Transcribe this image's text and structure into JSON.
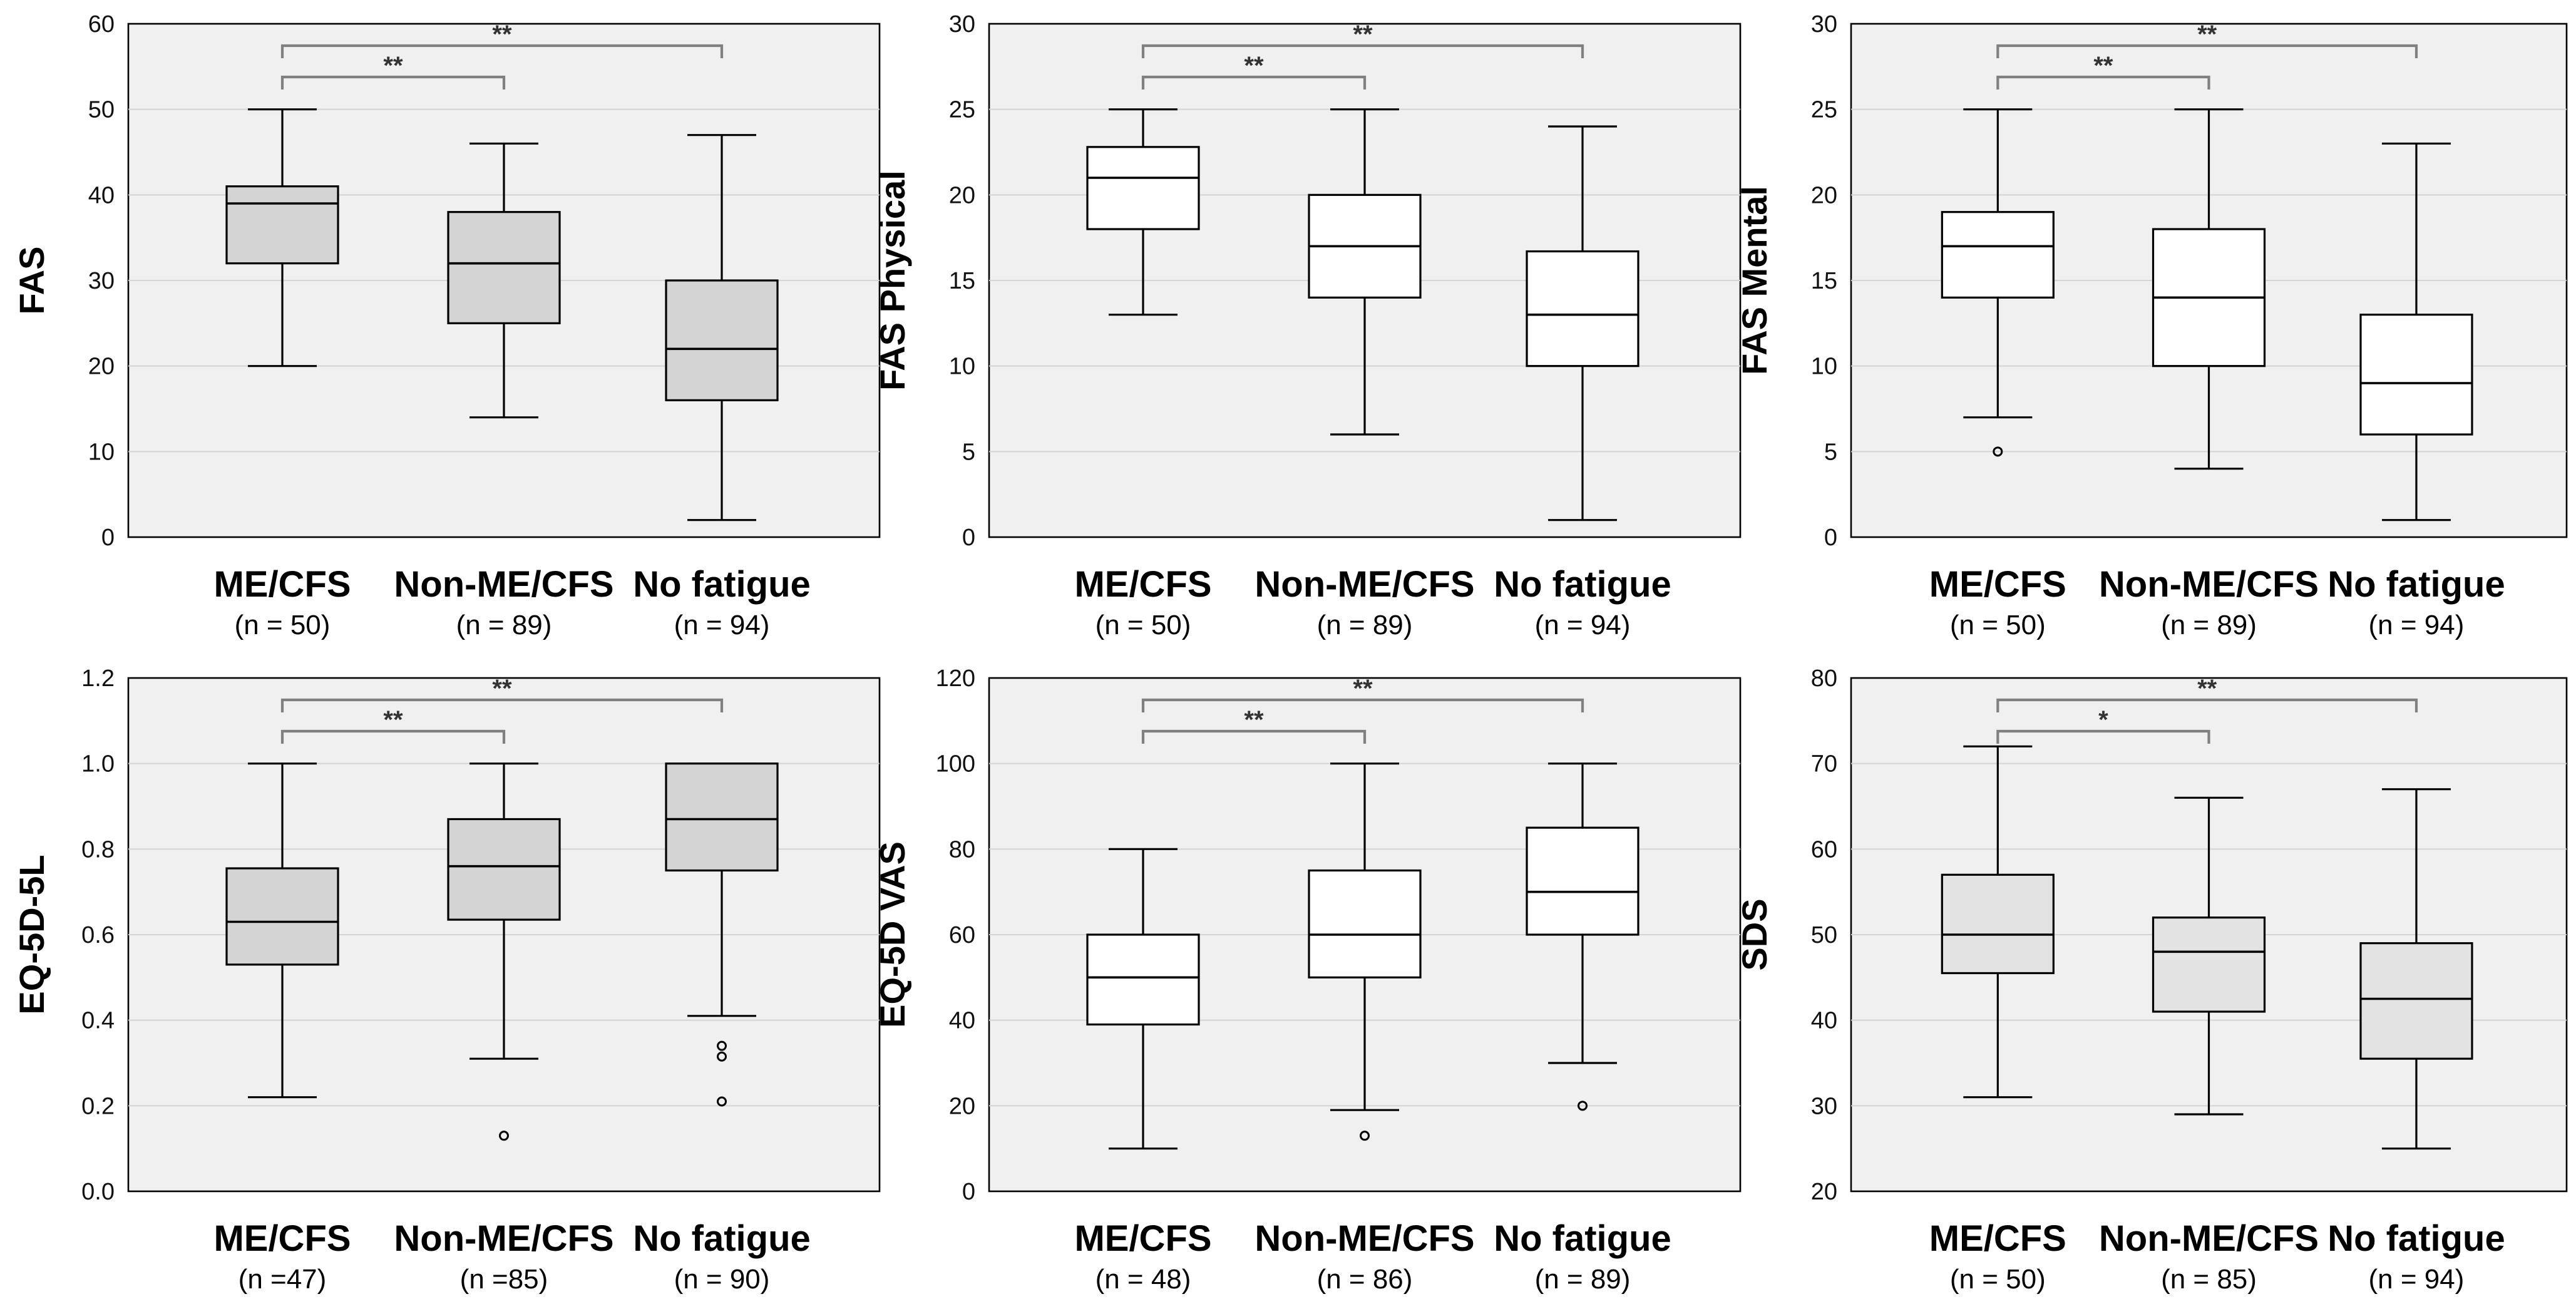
{
  "colors": {
    "box_gray": "#d4d4d4",
    "box_white": "#ffffff",
    "box_light": "#e3e3e3",
    "plot_background": "#f0f0f0",
    "bracket": "#808080"
  },
  "chart_data": [
    {
      "type": "boxplot",
      "ylabel": "FAS",
      "ylim": [
        0,
        60
      ],
      "yticks": [
        0,
        10,
        20,
        30,
        40,
        50,
        60
      ],
      "grid": true,
      "box_color": "#d4d4d4",
      "categories": [
        {
          "name": "ME/CFS",
          "n": "(n = 50)",
          "min": 20,
          "q1": 32,
          "median": 39,
          "q3": 41,
          "max": 50,
          "outliers": []
        },
        {
          "name": "Non-ME/CFS",
          "n": "(n = 89)",
          "min": 14,
          "q1": 25,
          "median": 32,
          "q3": 38,
          "max": 46,
          "outliers": []
        },
        {
          "name": "No fatigue",
          "n": "(n = 94)",
          "min": 2,
          "q1": 16,
          "median": 22,
          "q3": 30,
          "max": 47,
          "outliers": []
        }
      ],
      "significance": [
        {
          "from": 0,
          "to": 1,
          "label": "**"
        },
        {
          "from": 0,
          "to": 2,
          "label": "**"
        }
      ]
    },
    {
      "type": "boxplot",
      "ylabel": "FAS Physical",
      "ylim": [
        0,
        30
      ],
      "yticks": [
        0,
        5,
        10,
        15,
        20,
        25,
        30
      ],
      "grid": true,
      "box_color": "#ffffff",
      "categories": [
        {
          "name": "ME/CFS",
          "n": "(n = 50)",
          "min": 13,
          "q1": 18,
          "median": 21,
          "q3": 22.8,
          "max": 25,
          "outliers": []
        },
        {
          "name": "Non-ME/CFS",
          "n": "(n = 89)",
          "min": 6,
          "q1": 14,
          "median": 17,
          "q3": 20,
          "max": 25,
          "outliers": []
        },
        {
          "name": "No fatigue",
          "n": "(n = 94)",
          "min": 1,
          "q1": 10,
          "median": 13,
          "q3": 16.7,
          "max": 24,
          "outliers": []
        }
      ],
      "significance": [
        {
          "from": 0,
          "to": 1,
          "label": "**"
        },
        {
          "from": 0,
          "to": 2,
          "label": "**"
        }
      ]
    },
    {
      "type": "boxplot",
      "ylabel": "FAS Mental",
      "ylim": [
        0,
        30
      ],
      "yticks": [
        0,
        5,
        10,
        15,
        20,
        25,
        30
      ],
      "grid": true,
      "box_color": "#ffffff",
      "categories": [
        {
          "name": "ME/CFS",
          "n": "(n = 50)",
          "min": 7,
          "q1": 14,
          "median": 17,
          "q3": 19,
          "max": 25,
          "outliers": [
            5
          ]
        },
        {
          "name": "Non-ME/CFS",
          "n": "(n = 89)",
          "min": 4,
          "q1": 10,
          "median": 14,
          "q3": 18,
          "max": 25,
          "outliers": []
        },
        {
          "name": "No fatigue",
          "n": "(n = 94)",
          "min": 1,
          "q1": 6,
          "median": 9,
          "q3": 13,
          "max": 23,
          "outliers": []
        }
      ],
      "significance": [
        {
          "from": 0,
          "to": 1,
          "label": "**"
        },
        {
          "from": 0,
          "to": 2,
          "label": "**"
        }
      ]
    },
    {
      "type": "boxplot",
      "ylabel": "EQ-5D-5L",
      "ylim": [
        0,
        1.2
      ],
      "yticks": [
        "0.0",
        "0.2",
        "0.4",
        "0.6",
        "0.8",
        "1.0",
        "1.2"
      ],
      "grid": true,
      "box_color": "#d4d4d4",
      "categories": [
        {
          "name": "ME/CFS",
          "n": "(n =47)",
          "min": 0.22,
          "q1": 0.53,
          "median": 0.63,
          "q3": 0.755,
          "max": 1.0,
          "outliers": []
        },
        {
          "name": "Non-ME/CFS",
          "n": "(n =85)",
          "min": 0.31,
          "q1": 0.635,
          "median": 0.76,
          "q3": 0.87,
          "max": 1.0,
          "outliers": [
            0.13
          ]
        },
        {
          "name": "No fatigue",
          "n": "(n = 90)",
          "min": 0.41,
          "q1": 0.75,
          "median": 0.87,
          "q3": 1.0,
          "max": 1.0,
          "outliers": [
            0.34,
            0.315,
            0.21
          ]
        }
      ],
      "significance": [
        {
          "from": 0,
          "to": 1,
          "label": "**"
        },
        {
          "from": 0,
          "to": 2,
          "label": "**"
        }
      ]
    },
    {
      "type": "boxplot",
      "ylabel": "EQ-5D VAS",
      "ylim": [
        0,
        120
      ],
      "yticks": [
        0,
        20,
        40,
        60,
        80,
        100,
        120
      ],
      "grid": true,
      "box_color": "#ffffff",
      "categories": [
        {
          "name": "ME/CFS",
          "n": "(n = 48)",
          "min": 10,
          "q1": 39,
          "median": 50,
          "q3": 60,
          "max": 80,
          "outliers": []
        },
        {
          "name": "Non-ME/CFS",
          "n": "(n = 86)",
          "min": 19,
          "q1": 50,
          "median": 60,
          "q3": 75,
          "max": 100,
          "outliers": [
            13
          ]
        },
        {
          "name": "No fatigue",
          "n": "(n = 89)",
          "min": 30,
          "q1": 60,
          "median": 70,
          "q3": 85,
          "max": 100,
          "outliers": [
            20
          ]
        }
      ],
      "significance": [
        {
          "from": 0,
          "to": 1,
          "label": "**"
        },
        {
          "from": 0,
          "to": 2,
          "label": "**"
        }
      ]
    },
    {
      "type": "boxplot",
      "ylabel": "SDS",
      "ylim": [
        20,
        80
      ],
      "yticks": [
        20,
        30,
        40,
        50,
        60,
        70,
        80
      ],
      "grid": true,
      "box_color": "#e3e3e3",
      "categories": [
        {
          "name": "ME/CFS",
          "n": "(n = 50)",
          "min": 31,
          "q1": 45.5,
          "median": 50,
          "q3": 57,
          "max": 72,
          "outliers": []
        },
        {
          "name": "Non-ME/CFS",
          "n": "(n = 85)",
          "min": 29,
          "q1": 41,
          "median": 48,
          "q3": 52,
          "max": 66,
          "outliers": []
        },
        {
          "name": "No fatigue",
          "n": "(n = 94)",
          "min": 25,
          "q1": 35.5,
          "median": 42.5,
          "q3": 49,
          "max": 67,
          "outliers": []
        }
      ],
      "significance": [
        {
          "from": 0,
          "to": 1,
          "label": "*"
        },
        {
          "from": 0,
          "to": 2,
          "label": "**"
        }
      ]
    }
  ]
}
